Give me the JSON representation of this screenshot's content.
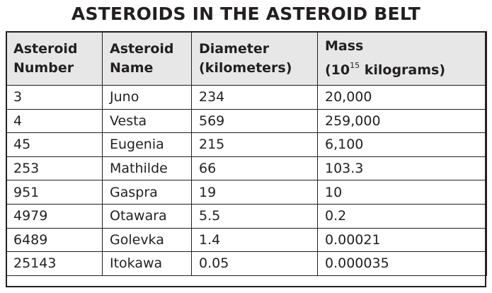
{
  "title": "ASTEROIDS IN THE ASTEROID BELT",
  "columns": [
    {
      "line1": "Asteroid",
      "line2": "Number"
    },
    {
      "line1": "Asteroid",
      "line2": "Name"
    },
    {
      "line1": "Diameter",
      "line2": "(kilometers)"
    },
    {
      "line1": "Mass",
      "line2_prefix": "(10",
      "line2_sup": "15",
      "line2_suffix": " kilograms)"
    }
  ],
  "rows": [
    [
      "3",
      "Juno",
      "234",
      "20,000"
    ],
    [
      "4",
      "Vesta",
      "569",
      "259,000"
    ],
    [
      "45",
      "Eugenia",
      "215",
      "6,100"
    ],
    [
      "253",
      "Mathilde",
      "66",
      "103.3"
    ],
    [
      "951",
      "Gaspra",
      "19",
      "10"
    ],
    [
      "4979",
      "Otawara",
      "5.5",
      "0.2"
    ],
    [
      "6489",
      "Golevka",
      "1.4",
      "0.00021"
    ],
    [
      "25143",
      "Itokawa",
      "0.05",
      "0.000035"
    ]
  ],
  "colors": {
    "header_background": "#e7e7e8",
    "border": "#231f20",
    "text": "#231f20"
  }
}
